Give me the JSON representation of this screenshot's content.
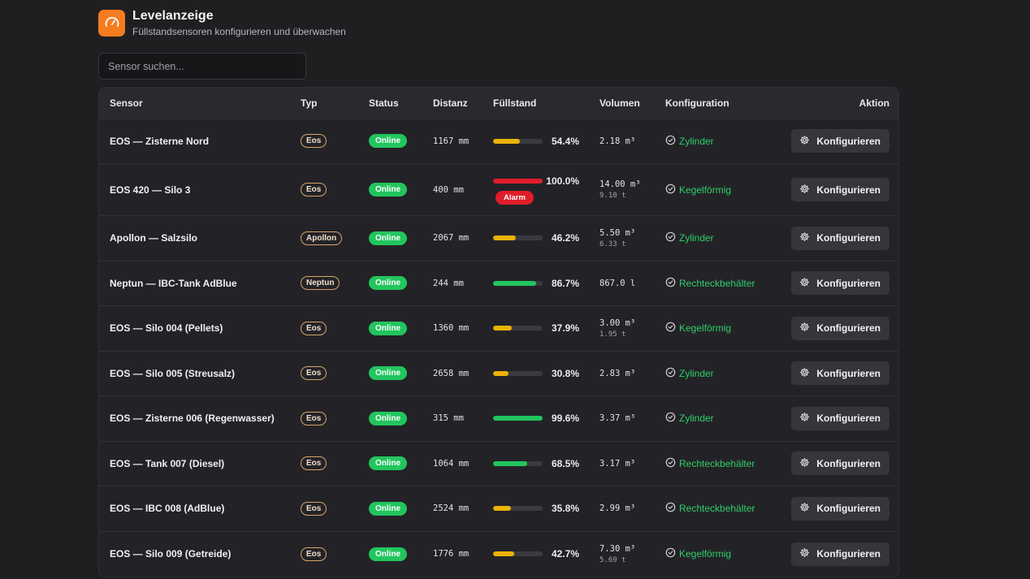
{
  "header": {
    "title": "Levelanzeige",
    "subtitle": "Füllstandsensoren konfigurieren und überwachen",
    "logo_icon": "gauge-icon",
    "accent": "#f57c1f"
  },
  "search": {
    "placeholder": "Sensor suchen...",
    "value": ""
  },
  "table": {
    "columns": [
      "Sensor",
      "Typ",
      "Status",
      "Distanz",
      "Füllstand",
      "Volumen",
      "Konfiguration",
      "Aktion"
    ],
    "rows": [
      {
        "sensor": "EOS — Zisterne Nord",
        "type": "Eos",
        "status": "Online",
        "distance": "1167 mm",
        "fill_pct": 54.4,
        "fill_label": "54.4%",
        "fill_color": "#eab308",
        "alarm": "",
        "volume": "2.18 m³",
        "weight": "",
        "config": "Zylinder",
        "action": "Konfigurieren"
      },
      {
        "sensor": "EOS 420 — Silo 3",
        "type": "Eos",
        "status": "Online",
        "distance": "400 mm",
        "fill_pct": 100.0,
        "fill_label": "100.0%",
        "fill_color": "#e11d2a",
        "alarm": "Alarm",
        "volume": "14.00 m³",
        "weight": "9.10 t",
        "config": "Kegelförmig",
        "action": "Konfigurieren"
      },
      {
        "sensor": "Apollon — Salzsilo",
        "type": "Apollon",
        "status": "Online",
        "distance": "2067 mm",
        "fill_pct": 46.2,
        "fill_label": "46.2%",
        "fill_color": "#eab308",
        "alarm": "",
        "volume": "5.50 m³",
        "weight": "6.33 t",
        "config": "Zylinder",
        "action": "Konfigurieren"
      },
      {
        "sensor": "Neptun — IBC-Tank AdBlue",
        "type": "Neptun",
        "status": "Online",
        "distance": "244 mm",
        "fill_pct": 86.7,
        "fill_label": "86.7%",
        "fill_color": "#22c55e",
        "alarm": "",
        "volume": "867.0 l",
        "weight": "",
        "config": "Rechteckbehälter",
        "action": "Konfigurieren"
      },
      {
        "sensor": "EOS — Silo 004 (Pellets)",
        "type": "Eos",
        "status": "Online",
        "distance": "1360 mm",
        "fill_pct": 37.9,
        "fill_label": "37.9%",
        "fill_color": "#eab308",
        "alarm": "",
        "volume": "3.00 m³",
        "weight": "1.95 t",
        "config": "Kegelförmig",
        "action": "Konfigurieren"
      },
      {
        "sensor": "EOS — Silo 005 (Streusalz)",
        "type": "Eos",
        "status": "Online",
        "distance": "2658 mm",
        "fill_pct": 30.8,
        "fill_label": "30.8%",
        "fill_color": "#eab308",
        "alarm": "",
        "volume": "2.83 m³",
        "weight": "",
        "config": "Zylinder",
        "action": "Konfigurieren"
      },
      {
        "sensor": "EOS — Zisterne 006 (Regenwasser)",
        "type": "Eos",
        "status": "Online",
        "distance": "315 mm",
        "fill_pct": 99.6,
        "fill_label": "99.6%",
        "fill_color": "#22c55e",
        "alarm": "",
        "volume": "3.37 m³",
        "weight": "",
        "config": "Zylinder",
        "action": "Konfigurieren"
      },
      {
        "sensor": "EOS — Tank 007 (Diesel)",
        "type": "Eos",
        "status": "Online",
        "distance": "1064 mm",
        "fill_pct": 68.5,
        "fill_label": "68.5%",
        "fill_color": "#22c55e",
        "alarm": "",
        "volume": "3.17 m³",
        "weight": "",
        "config": "Rechteckbehälter",
        "action": "Konfigurieren"
      },
      {
        "sensor": "EOS — IBC 008 (AdBlue)",
        "type": "Eos",
        "status": "Online",
        "distance": "2524 mm",
        "fill_pct": 35.8,
        "fill_label": "35.8%",
        "fill_color": "#eab308",
        "alarm": "",
        "volume": "2.99 m³",
        "weight": "",
        "config": "Rechteckbehälter",
        "action": "Konfigurieren"
      },
      {
        "sensor": "EOS — Silo 009 (Getreide)",
        "type": "Eos",
        "status": "Online",
        "distance": "1776 mm",
        "fill_pct": 42.7,
        "fill_label": "42.7%",
        "fill_color": "#eab308",
        "alarm": "",
        "volume": "7.30 m³",
        "weight": "5.69 t",
        "config": "Kegelförmig",
        "action": "Konfigurieren"
      }
    ]
  },
  "icons": {
    "config": "check-circle-icon",
    "action": "gear-icon"
  }
}
